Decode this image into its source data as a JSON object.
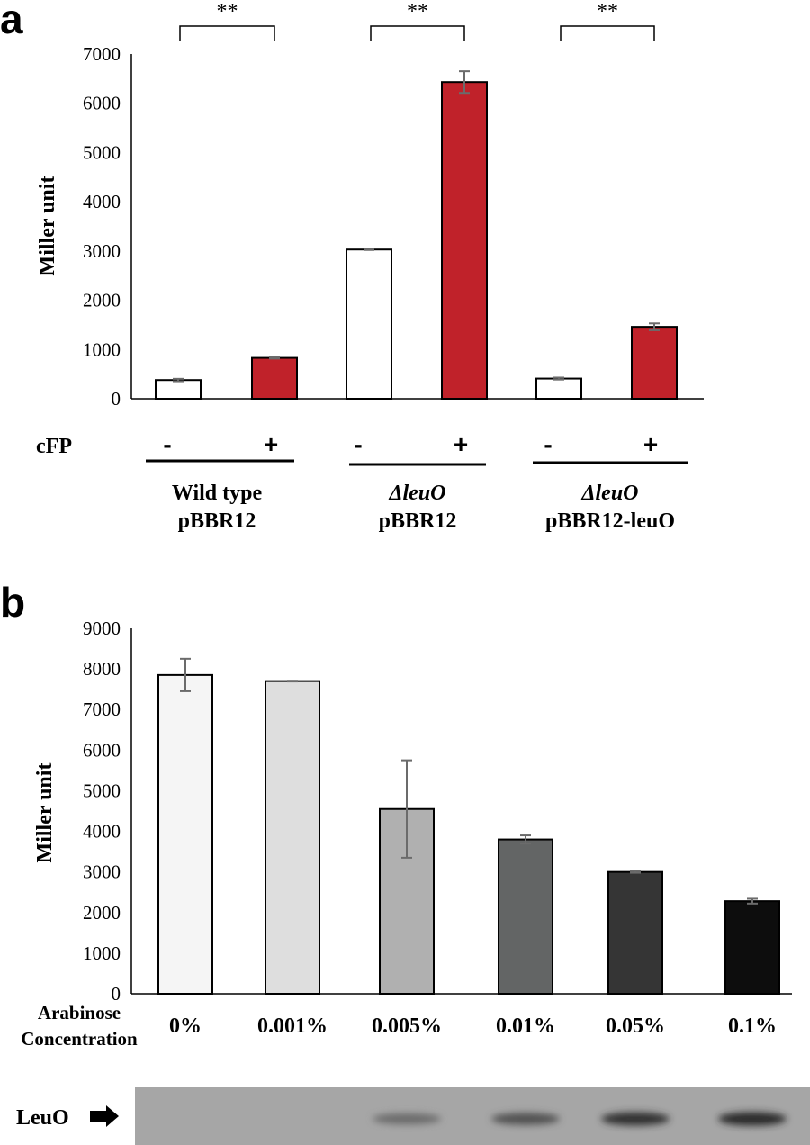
{
  "panel_a": {
    "label": "a",
    "cfp_label": "cFP",
    "group_lines": [
      [
        "Wild type",
        "pBBR12"
      ],
      [
        "ΔleuO",
        "pBBR12"
      ],
      [
        "ΔleuO",
        "pBBR12-leuO"
      ]
    ],
    "significance": [
      "**",
      "**",
      "**"
    ]
  },
  "panel_b": {
    "label": "b",
    "xlabel_line1": "Arabinose",
    "xlabel_line2": "Concentration",
    "western_label": "LeuO",
    "band_intensity": [
      0.0,
      0.0,
      0.35,
      0.55,
      0.8,
      0.85
    ]
  },
  "chart_data": [
    {
      "type": "bar",
      "title": "",
      "xlabel": "",
      "ylabel": "Miller unit",
      "ylim": [
        0,
        7000
      ],
      "yticks": [
        "0",
        "1000",
        "2000",
        "3000",
        "4000",
        "5000",
        "6000",
        "7000"
      ],
      "groups": [
        "Wild type pBBR12",
        "ΔleuO pBBR12",
        "ΔleuO pBBR12-leuO"
      ],
      "categories": [
        "-",
        "+",
        "-",
        "+",
        "-",
        "+"
      ],
      "values": [
        380,
        830,
        3030,
        6430,
        410,
        1460
      ],
      "errors": [
        25,
        15,
        10,
        220,
        20,
        70
      ],
      "colors": [
        "#ffffff",
        "#c0222a",
        "#ffffff",
        "#c0222a",
        "#ffffff",
        "#c0222a"
      ]
    },
    {
      "type": "bar",
      "title": "",
      "xlabel": "Arabinose Concentration",
      "ylabel": "Miller unit",
      "ylim": [
        0,
        9000
      ],
      "yticks": [
        "0",
        "1000",
        "2000",
        "3000",
        "4000",
        "5000",
        "6000",
        "7000",
        "8000",
        "9000"
      ],
      "categories": [
        "0%",
        "0.001%",
        "0.005%",
        "0.01%",
        "0.05%",
        "0.1%"
      ],
      "values": [
        7850,
        7700,
        4550,
        3800,
        3000,
        2280
      ],
      "errors": [
        400,
        10,
        1200,
        100,
        20,
        60
      ],
      "colors": [
        "#f5f5f5",
        "#dedede",
        "#b0b0b0",
        "#636565",
        "#353535",
        "#0d0d0d"
      ]
    }
  ]
}
